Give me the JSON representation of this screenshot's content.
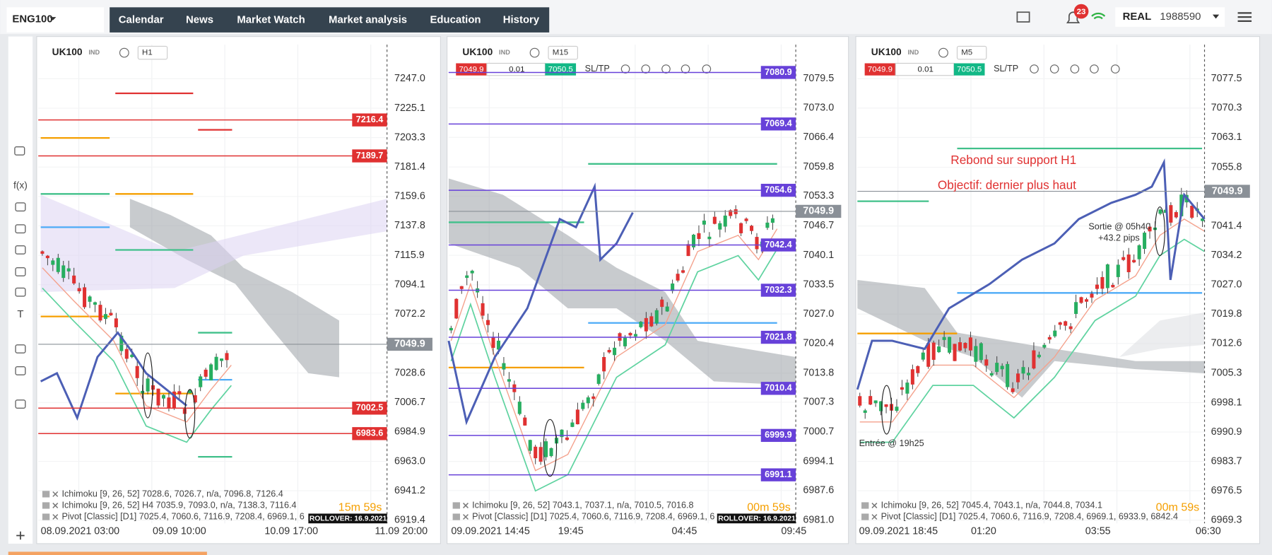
{
  "header": {
    "symbol": "ENG100",
    "tabs": [
      "Calendar",
      "News",
      "Market Watch",
      "Market analysis",
      "Education",
      "History"
    ],
    "notifications": "23",
    "account_type": "REAL",
    "account_number": "1988590"
  },
  "toolbar": {
    "tools": [
      "f(x)",
      "T"
    ]
  },
  "panels": [
    {
      "symbol": "UK100",
      "instrument_type": "IND",
      "timeframe": "H1",
      "price_axis": [
        "7247.0",
        "7225.1",
        "7203.3",
        "7181.4",
        "7159.6",
        "7137.8",
        "7115.9",
        "7094.1",
        "7072.2",
        "7028.6",
        "7006.7",
        "6984.9",
        "6963.0",
        "6941.2",
        "6919.4"
      ],
      "price_tags": [
        {
          "label": "7216.4",
          "color": "#e03131"
        },
        {
          "label": "7189.7",
          "color": "#e03131"
        },
        {
          "label": "7049.9",
          "color": "#8a9097"
        },
        {
          "label": "7002.5",
          "color": "#e03131"
        },
        {
          "label": "6983.6",
          "color": "#e03131"
        }
      ],
      "time_axis": [
        "08.09.2021 03:00",
        "09.09 10:00",
        "10.09 17:00",
        "11.09 20:00"
      ],
      "legends": [
        "Ichimoku [9, 26, 52] 7028.6, 7026.7, n/a, 7096.8, 7126.4",
        "Ichimoku [9, 26, 52] H4 7035.9, 7093.0, n/a, 7138.3, 7116.4",
        "Pivot [Classic] [D1] 7025.4, 7060.6, 7116.9, 7208.4, 6969.1, 6"
      ],
      "timer": "15m 59s",
      "rollover": "ROLLOVER: 16.9.2021"
    },
    {
      "symbol": "UK100",
      "instrument_type": "IND",
      "timeframe": "M15",
      "order": {
        "sell": "7049.9",
        "lot": "0.01",
        "buy": "7050.5",
        "sltp": "SL/TP"
      },
      "price_axis": [
        "7079.5",
        "7073.0",
        "7066.4",
        "7059.8",
        "7053.3",
        "7046.7",
        "7040.1",
        "7033.5",
        "7027.0",
        "7020.4",
        "7013.8",
        "7007.3",
        "7000.7",
        "6994.1",
        "6987.6",
        "6981.0"
      ],
      "price_tags": [
        {
          "label": "7080.9",
          "color": "#6741d9"
        },
        {
          "label": "7069.4",
          "color": "#6741d9"
        },
        {
          "label": "7054.6",
          "color": "#6741d9"
        },
        {
          "label": "7049.9",
          "color": "#8a9097"
        },
        {
          "label": "7042.4",
          "color": "#6741d9"
        },
        {
          "label": "7032.3",
          "color": "#6741d9"
        },
        {
          "label": "7021.8",
          "color": "#6741d9"
        },
        {
          "label": "7010.4",
          "color": "#6741d9"
        },
        {
          "label": "6999.9",
          "color": "#6741d9"
        },
        {
          "label": "6991.1",
          "color": "#6741d9"
        }
      ],
      "time_axis": [
        "09.09.2021 14:45",
        "19:45",
        "04:45",
        "09:45"
      ],
      "legends": [
        "Ichimoku [9, 26, 52] 7043.1, 7037.1, n/a, 7010.5, 7016.8",
        "Pivot [Classic] [D1] 7025.4, 7060.6, 7116.9, 7208.4, 6969.1, 6"
      ],
      "timer": "00m 59s",
      "rollover": "ROLLOVER: 16.9.2021"
    },
    {
      "symbol": "UK100",
      "instrument_type": "IND",
      "timeframe": "M5",
      "order": {
        "sell": "7049.9",
        "lot": "0.01",
        "buy": "7050.5",
        "sltp": "SL/TP"
      },
      "price_axis": [
        "7077.5",
        "7070.3",
        "7063.1",
        "7055.8",
        "7041.4",
        "7034.2",
        "7027.0",
        "7019.8",
        "7012.6",
        "7005.3",
        "6998.1",
        "6990.9",
        "6983.7",
        "6976.5",
        "6969.3"
      ],
      "price_tags": [
        {
          "label": "7049.9",
          "color": "#8a9097"
        }
      ],
      "time_axis": [
        "09.09.2021 18:45",
        "01:20",
        "03:55",
        "06:30"
      ],
      "legends": [
        "Ichimoku [9, 26, 52] 7045.4, 7043.1, n/a, 7044.8, 7034.1",
        "Pivot [Classic] [D1] 7025.4, 7060.6, 7116.9, 7208.4, 6969.1, 6933.9, 6842.4"
      ],
      "timer": "00m 59s",
      "annotations": [
        "Rebond sur support H1",
        "Objectif: dernier plus haut",
        "Sortie @ 05h40",
        "+43.2 pips",
        "Entrée @ 19h25"
      ]
    }
  ]
}
